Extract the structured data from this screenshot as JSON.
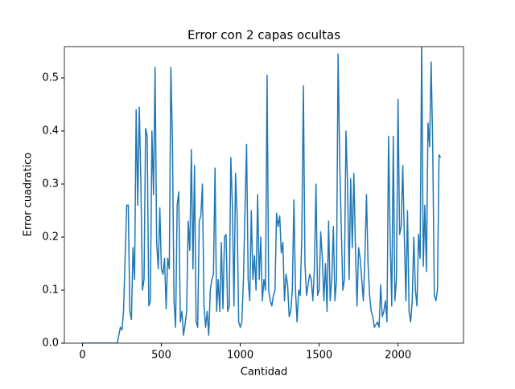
{
  "chart_data": {
    "type": "line",
    "title": "Error con 2 capas ocultas",
    "x_label": "Cantidad",
    "y_label": "Error cuadratico",
    "color": "#1f77b4",
    "x": [
      0,
      100,
      200,
      220,
      240,
      250,
      260,
      280,
      290,
      300,
      310,
      320,
      330,
      340,
      350,
      360,
      370,
      380,
      390,
      400,
      410,
      420,
      430,
      440,
      450,
      460,
      470,
      480,
      490,
      500,
      510,
      520,
      530,
      540,
      550,
      560,
      570,
      580,
      590,
      600,
      610,
      620,
      630,
      640,
      650,
      660,
      670,
      680,
      690,
      700,
      710,
      720,
      730,
      740,
      750,
      760,
      770,
      780,
      790,
      800,
      810,
      820,
      830,
      840,
      850,
      860,
      870,
      880,
      890,
      900,
      910,
      920,
      930,
      940,
      950,
      960,
      970,
      980,
      990,
      1000,
      1010,
      1020,
      1030,
      1040,
      1050,
      1060,
      1070,
      1080,
      1090,
      1100,
      1110,
      1120,
      1130,
      1140,
      1150,
      1160,
      1170,
      1180,
      1190,
      1200,
      1210,
      1220,
      1230,
      1240,
      1250,
      1260,
      1270,
      1280,
      1290,
      1300,
      1310,
      1320,
      1330,
      1340,
      1350,
      1360,
      1370,
      1380,
      1390,
      1400,
      1410,
      1420,
      1430,
      1440,
      1450,
      1460,
      1470,
      1480,
      1490,
      1500,
      1510,
      1520,
      1530,
      1540,
      1550,
      1560,
      1570,
      1580,
      1590,
      1600,
      1610,
      1620,
      1630,
      1640,
      1650,
      1660,
      1670,
      1680,
      1690,
      1700,
      1710,
      1720,
      1730,
      1740,
      1750,
      1760,
      1770,
      1780,
      1790,
      1800,
      1810,
      1820,
      1830,
      1840,
      1850,
      1860,
      1870,
      1880,
      1890,
      1900,
      1910,
      1920,
      1930,
      1940,
      1950,
      1960,
      1970,
      1980,
      1990,
      2000,
      2010,
      2020,
      2030,
      2040,
      2050,
      2060,
      2070,
      2080,
      2090,
      2100,
      2110,
      2120,
      2130,
      2140,
      2150,
      2160,
      2170,
      2180,
      2190,
      2200,
      2210,
      2220,
      2230,
      2240,
      2250,
      2260,
      2270
    ],
    "values": [
      0,
      0,
      0,
      0,
      0.03,
      0.025,
      0.06,
      0.26,
      0.26,
      0.06,
      0.045,
      0.18,
      0.12,
      0.44,
      0.26,
      0.445,
      0.3,
      0.1,
      0.12,
      0.405,
      0.39,
      0.07,
      0.08,
      0.4,
      0.28,
      0.52,
      0.19,
      0.14,
      0.255,
      0.14,
      0.13,
      0.16,
      0.065,
      0.16,
      0.14,
      0.52,
      0.38,
      0.08,
      0.03,
      0.26,
      0.285,
      0.04,
      0.06,
      0.015,
      0.035,
      0.06,
      0.23,
      0.175,
      0.365,
      0.14,
      0.335,
      0.04,
      0.03,
      0.23,
      0.24,
      0.3,
      0.07,
      0.03,
      0.06,
      0.015,
      0.1,
      0.12,
      0.13,
      0.33,
      0.06,
      0.12,
      0.06,
      0.19,
      0.065,
      0.2,
      0.205,
      0.06,
      0.07,
      0.35,
      0.26,
      0.07,
      0.32,
      0.24,
      0.04,
      0.03,
      0.04,
      0.12,
      0.25,
      0.375,
      0.12,
      0.08,
      0.25,
      0.12,
      0.165,
      0.1,
      0.28,
      0.12,
      0.2,
      0.08,
      0.12,
      0.1,
      0.505,
      0.1,
      0.08,
      0.07,
      0.09,
      0.1,
      0.245,
      0.22,
      0.24,
      0.17,
      0.19,
      0.08,
      0.13,
      0.11,
      0.05,
      0.06,
      0.1,
      0.27,
      0.1,
      0.04,
      0.1,
      0.09,
      0.2,
      0.485,
      0.15,
      0.09,
      0.11,
      0.13,
      0.12,
      0.08,
      0.14,
      0.3,
      0.09,
      0.1,
      0.21,
      0.16,
      0.08,
      0.15,
      0.06,
      0.23,
      0.08,
      0.12,
      0.22,
      0.08,
      0.12,
      0.545,
      0.35,
      0.22,
      0.1,
      0.12,
      0.4,
      0.3,
      0.12,
      0.31,
      0.18,
      0.32,
      0.18,
      0.07,
      0.18,
      0.16,
      0.12,
      0.08,
      0.16,
      0.28,
      0.15,
      0.09,
      0.06,
      0.05,
      0.03,
      0.035,
      0.04,
      0.03,
      0.11,
      0.05,
      0.06,
      0.08,
      0.04,
      0.39,
      0.2,
      0.07,
      0.39,
      0.08,
      0.12,
      0.46,
      0.205,
      0.22,
      0.335,
      0.2,
      0.08,
      0.25,
      0.06,
      0.04,
      0.08,
      0.2,
      0.1,
      0.07,
      0.205,
      0.16,
      0.57,
      0.145,
      0.26,
      0.135,
      0.415,
      0.37,
      0.53,
      0.37,
      0.09,
      0.08,
      0.1,
      0.355,
      0.35
    ],
    "xlim": [
      -115,
      2415
    ],
    "xticks": [
      0,
      500,
      1000,
      1500,
      2000
    ],
    "ylim": [
      0,
      0.559
    ],
    "yticks": [
      {
        "value": 0,
        "label": "0.0"
      },
      0.1,
      0.2,
      0.3,
      0.4,
      0.5
    ]
  }
}
